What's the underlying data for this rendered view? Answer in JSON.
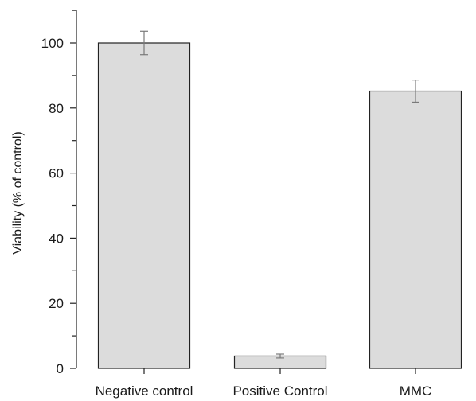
{
  "chart_data": {
    "type": "bar",
    "title": "",
    "xlabel": "",
    "ylabel": "Viability (% of control)",
    "categories": [
      "Negative control",
      "Positive Control",
      "MMC"
    ],
    "values": [
      100,
      3.8,
      85.2
    ],
    "errors": [
      3.6,
      0.6,
      3.4
    ],
    "ylim": [
      0,
      110
    ],
    "yticks": [
      0,
      20,
      40,
      60,
      80,
      100
    ],
    "grid": false,
    "colors": {
      "bar_fill": "#dcdcdc",
      "bar_stroke": "#222222",
      "axis": "#222222",
      "error_bar": "#7a7a7a"
    }
  }
}
